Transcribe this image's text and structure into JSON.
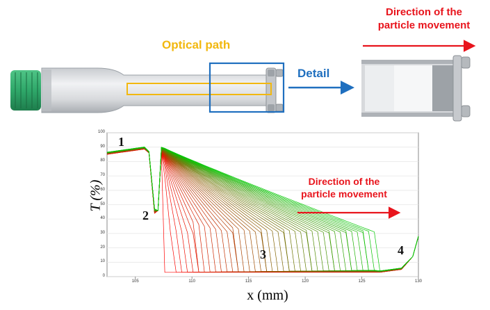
{
  "top": {
    "optical_path_label": "Optical path",
    "detail_label": "Detail",
    "direction_label_line1": "Direction of the",
    "direction_label_line2": "particle movement"
  },
  "chart_data": {
    "type": "line",
    "title": "",
    "xlabel": "x (mm)",
    "ylabel": "T (%)",
    "xlim": [
      102.5,
      130
    ],
    "ylim": [
      0,
      100
    ],
    "x_ticks": [
      105,
      110,
      115,
      120,
      125,
      130
    ],
    "y_ticks": [
      0,
      10,
      20,
      30,
      40,
      50,
      60,
      70,
      80,
      90,
      100
    ],
    "grid": true,
    "color_gradient": [
      "#ff0000",
      "#00c800"
    ],
    "annotation_line1": "Direction of the",
    "annotation_line2": "particle movement",
    "region_labels": [
      "1",
      "2",
      "3",
      "4"
    ]
  }
}
